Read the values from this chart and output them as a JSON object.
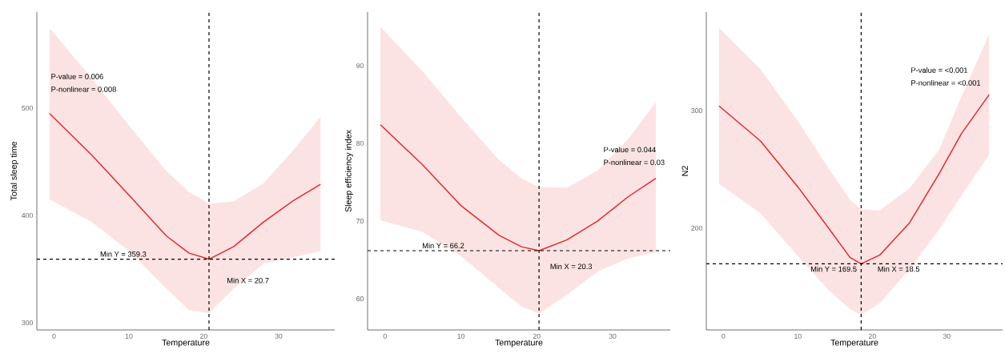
{
  "chart_data": [
    {
      "type": "line",
      "xlabel": "Temperature",
      "ylabel": "Total sleep time",
      "xlim": [
        -2.3,
        37.5
      ],
      "ylim": [
        293.3,
        589.6
      ],
      "xticks": [
        0,
        10,
        20,
        30
      ],
      "yticks": [
        300,
        400,
        500
      ],
      "grid": false,
      "series": [
        {
          "color": "#e8262a",
          "x": [
            -0.6,
            5,
            10,
            15,
            18,
            20.7,
            24,
            28,
            32,
            35.6
          ],
          "values": [
            495,
            456.5,
            419,
            381,
            365,
            359.3,
            371,
            394,
            414,
            429
          ],
          "upper": [
            574.6,
            528,
            484,
            441.5,
            422,
            411,
            413,
            430,
            461,
            492
          ],
          "lower": [
            415,
            394,
            367,
            332,
            312,
            309,
            332,
            355,
            361,
            367
          ]
        }
      ],
      "ref_lines": [
        {
          "axis": "y",
          "value": 359.3,
          "label": "Min Y = 359.3",
          "color": "#000000",
          "line_style": "dashed"
        },
        {
          "axis": "x",
          "value": 20.7,
          "label": "Min X = 20.7",
          "color": "#000000",
          "line_style": "dashed"
        }
      ],
      "annotations": [
        "P-value = 0.006",
        "P-nonlinear = 0.008"
      ]
    },
    {
      "type": "line",
      "xlabel": "Temperature",
      "ylabel": "Sleep efficiency index",
      "xlim": [
        -2.3,
        37.6
      ],
      "ylim": [
        56.0,
        96.9
      ],
      "xticks": [
        0,
        10,
        20,
        30
      ],
      "yticks": [
        60,
        70,
        80,
        90
      ],
      "grid": false,
      "series": [
        {
          "color": "#e8262a",
          "x": [
            -0.6,
            5,
            10,
            15,
            18,
            20.3,
            24,
            28,
            32,
            35.7
          ],
          "values": [
            82.4,
            77.2,
            72.0,
            68.2,
            66.7,
            66.2,
            67.6,
            70.0,
            73.1,
            75.5
          ],
          "upper": [
            95,
            89.2,
            83.4,
            77.9,
            75.5,
            74.4,
            74.3,
            76.5,
            80.5,
            85.3
          ],
          "lower": [
            70.1,
            68.6,
            65.5,
            61.4,
            59,
            58.1,
            60.5,
            63.5,
            65.2,
            66.0
          ]
        }
      ],
      "ref_lines": [
        {
          "axis": "y",
          "value": 66.2,
          "label": "Min Y = 66.2",
          "color": "#000000",
          "line_style": "dashed"
        },
        {
          "axis": "x",
          "value": 20.3,
          "label": "Min X = 20.3",
          "color": "#000000",
          "line_style": "dashed"
        }
      ],
      "annotations": [
        "P-value = 0.044",
        "P-nonlinear = 0.03"
      ]
    },
    {
      "type": "line",
      "xlabel": "Temperature",
      "ylabel": "N2",
      "xlim": [
        -2.3,
        37.5
      ],
      "ylim": [
        113.2,
        384
      ],
      "xticks": [
        0,
        10,
        20,
        30
      ],
      "yticks": [
        200,
        300
      ],
      "grid": false,
      "series": [
        {
          "color": "#e8262a",
          "x": [
            -0.6,
            5,
            10,
            14,
            17,
            18.5,
            21,
            25,
            29,
            32,
            35.7
          ],
          "values": [
            304,
            274,
            235,
            201,
            175,
            169.5,
            177,
            204.5,
            246.6,
            280.7,
            313.6
          ],
          "upper": [
            370.5,
            335,
            291,
            252,
            224,
            216,
            215,
            234,
            267,
            312.5,
            365
          ],
          "lower": [
            237.5,
            212.5,
            176,
            148,
            131,
            126,
            136,
            165,
            199,
            228,
            262.5
          ]
        }
      ],
      "ref_lines": [
        {
          "axis": "y",
          "value": 169.5,
          "label": "Min Y = 169.5",
          "color": "#000000",
          "line_style": "dashed"
        },
        {
          "axis": "x",
          "value": 18.5,
          "label": "Min X = 18.5",
          "color": "#000000",
          "line_style": "dashed"
        }
      ],
      "annotations": [
        "P-value = <0.001",
        "P-nonlinear = <0.001"
      ]
    }
  ]
}
